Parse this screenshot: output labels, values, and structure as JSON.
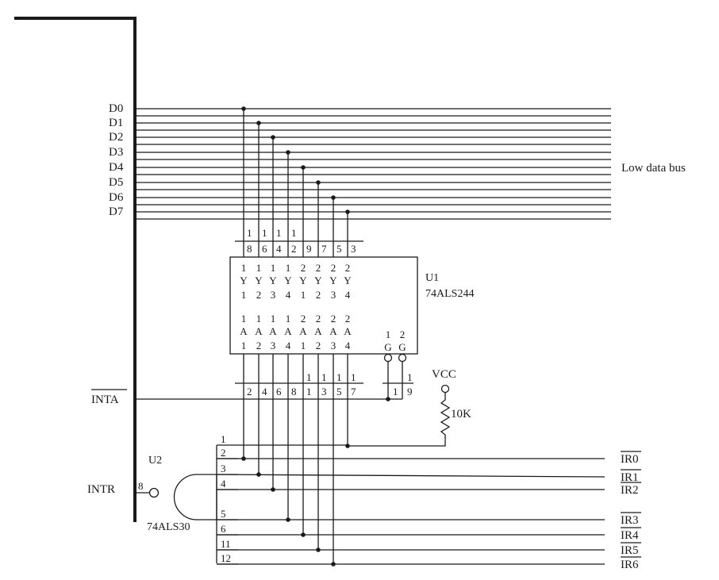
{
  "bus_labels": [
    "D0",
    "D1",
    "D2",
    "D3",
    "D4",
    "D5",
    "D6",
    "D7"
  ],
  "low_data_bus": "Low data bus",
  "u1": {
    "ref": "U1",
    "part": "74ALS244",
    "top_pins": [
      "18",
      "16",
      "14",
      "12",
      "9",
      "7",
      "5",
      "3"
    ],
    "y_labels": [
      "1Y1",
      "1Y2",
      "1Y3",
      "1Y4",
      "2Y1",
      "2Y2",
      "2Y3",
      "2Y4"
    ],
    "a_labels": [
      "1A1",
      "1A2",
      "1A3",
      "1A4",
      "2A1",
      "2A2",
      "2A3",
      "2A4"
    ],
    "bottom_pins": [
      "2",
      "4",
      "6",
      "8",
      "11",
      "13",
      "15",
      "17"
    ],
    "g_labels": [
      "1G",
      "2G"
    ],
    "g_pins": [
      "1",
      "19"
    ]
  },
  "u2": {
    "ref": "U2",
    "part": "74ALS30",
    "output_pin": "8",
    "input_pins": [
      "1",
      "2",
      "3",
      "4",
      "5",
      "6",
      "11",
      "12"
    ]
  },
  "inta": "INTA",
  "intr": "INTR",
  "vcc": "VCC",
  "resistor": "10K",
  "ir_labels": [
    "IR0",
    "IR1",
    "IR2",
    "IR3",
    "IR4",
    "IR5",
    "IR6"
  ]
}
